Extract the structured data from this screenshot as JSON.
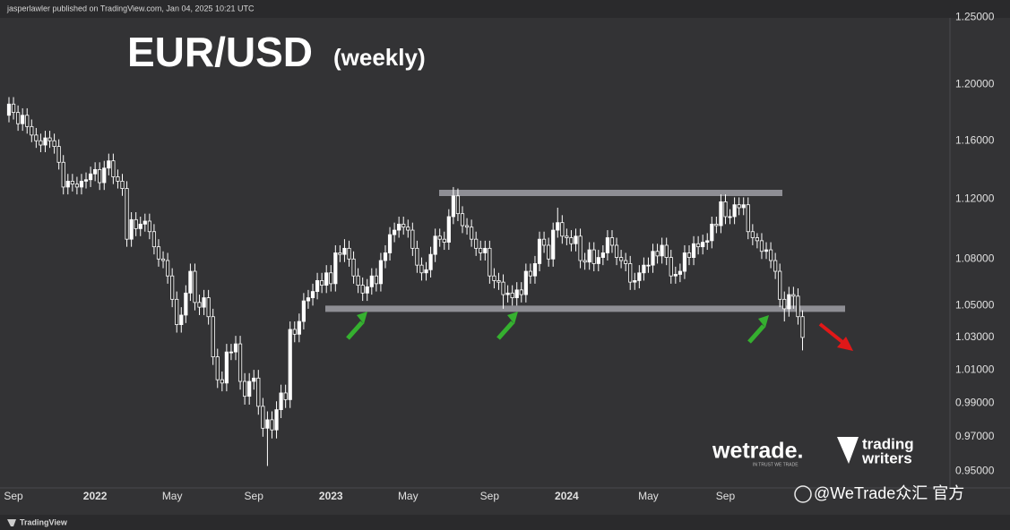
{
  "header": {
    "byline": "jasperlawler published on TradingView.com, Jan 04, 2025 10:21 UTC",
    "footer": "TradingView"
  },
  "branding": {
    "wetrade": "wetrade.",
    "wetrade_tagline": "IN TRUST WE TRADE",
    "trading": "trading",
    "writers": "writers",
    "watermark": "@WeTrade众汇 官方"
  },
  "chart_data": {
    "type": "candlestick",
    "title": "EUR/USD",
    "subtitle": "(weekly)",
    "log_scale": true,
    "grid": false,
    "up_color": "#ffffff",
    "down_color": "#2b2b2b",
    "wick_color": "#ffffff",
    "level_color": "#8e8e94",
    "ylim": [
      0.943,
      1.263
    ],
    "yticks": [
      {
        "value": 1.25,
        "label": "1.25000"
      },
      {
        "value": 1.2,
        "label": "1.20000"
      },
      {
        "value": 1.16,
        "label": "1.16000"
      },
      {
        "value": 1.12,
        "label": "1.12000"
      },
      {
        "value": 1.08,
        "label": "1.08000"
      },
      {
        "value": 1.05,
        "label": "1.05000"
      },
      {
        "value": 1.03,
        "label": "1.03000"
      },
      {
        "value": 1.01,
        "label": "1.01000"
      },
      {
        "value": 0.99,
        "label": "0.99000"
      },
      {
        "value": 0.97,
        "label": "0.97000"
      },
      {
        "value": 0.95,
        "label": "0.95000"
      }
    ],
    "levels": [
      1.124,
      1.048
    ],
    "categories": [
      null,
      "Sep",
      null,
      null,
      null,
      null,
      null,
      null,
      null,
      null,
      null,
      null,
      null,
      null,
      null,
      null,
      null,
      null,
      null,
      "2022",
      null,
      null,
      null,
      null,
      null,
      null,
      null,
      null,
      null,
      null,
      null,
      null,
      null,
      null,
      null,
      null,
      "May",
      null,
      null,
      null,
      null,
      null,
      null,
      null,
      null,
      null,
      null,
      null,
      null,
      null,
      null,
      null,
      null,
      null,
      "Sep",
      null,
      null,
      null,
      null,
      null,
      null,
      null,
      null,
      null,
      null,
      null,
      null,
      null,
      null,
      null,
      null,
      "2023",
      null,
      null,
      null,
      null,
      null,
      null,
      null,
      null,
      null,
      null,
      null,
      null,
      null,
      null,
      null,
      null,
      "May",
      null,
      null,
      null,
      null,
      null,
      null,
      null,
      null,
      null,
      null,
      null,
      null,
      null,
      null,
      null,
      null,
      null,
      "Sep",
      null,
      null,
      null,
      null,
      null,
      null,
      null,
      null,
      null,
      null,
      null,
      null,
      null,
      null,
      null,
      null,
      "2024",
      null,
      null,
      null,
      null,
      null,
      null,
      null,
      null,
      null,
      null,
      null,
      null,
      null,
      null,
      null,
      null,
      null,
      "May",
      null,
      null,
      null,
      null,
      null,
      null,
      null,
      null,
      null,
      null,
      null,
      null,
      null,
      null,
      null,
      null,
      "Sep",
      null,
      null,
      null,
      null,
      null,
      null,
      null,
      null,
      null,
      null,
      null,
      null,
      null,
      null,
      null,
      null,
      null
    ],
    "open": [
      1.178,
      1.186,
      1.18,
      1.172,
      1.178,
      1.17,
      1.164,
      1.16,
      1.157,
      1.162,
      1.16,
      1.156,
      1.145,
      1.128,
      1.132,
      1.13,
      1.128,
      1.132,
      1.133,
      1.137,
      1.14,
      1.131,
      1.141,
      1.146,
      1.135,
      1.132,
      1.127,
      1.093,
      1.106,
      1.1,
      1.103,
      1.105,
      1.098,
      1.088,
      1.08,
      1.079,
      1.069,
      1.054,
      1.038,
      1.044,
      1.058,
      1.072,
      1.052,
      1.049,
      1.055,
      1.043,
      1.018,
      1.004,
      1.002,
      1.021,
      1.021,
      1.026,
      1.003,
      0.994,
      1.003,
      1.005,
      0.988,
      0.975,
      0.98,
      0.974,
      0.986,
      0.996,
      0.992,
      1.035,
      1.032,
      1.04,
      1.053,
      1.055,
      1.059,
      1.066,
      1.063,
      1.071,
      1.064,
      1.084,
      1.083,
      1.087,
      1.08,
      1.069,
      1.063,
      1.058,
      1.062,
      1.069,
      1.064,
      1.079,
      1.084,
      1.096,
      1.099,
      1.103,
      1.101,
      1.099,
      1.087,
      1.076,
      1.071,
      1.073,
      1.083,
      1.095,
      1.093,
      1.091,
      1.108,
      1.122,
      1.11,
      1.102,
      1.101,
      1.093,
      1.087,
      1.084,
      1.087,
      1.069,
      1.066,
      1.065,
      1.057,
      1.058,
      1.055,
      1.06,
      1.057,
      1.072,
      1.069,
      1.077,
      1.093,
      1.089,
      1.08,
      1.099,
      1.104,
      1.095,
      1.094,
      1.09,
      1.095,
      1.079,
      1.078,
      1.086,
      1.077,
      1.081,
      1.084,
      1.094,
      1.089,
      1.081,
      1.079,
      1.077,
      1.065,
      1.066,
      1.071,
      1.076,
      1.076,
      1.085,
      1.082,
      1.089,
      1.081,
      1.069,
      1.07,
      1.072,
      1.084,
      1.081,
      1.09,
      1.088,
      1.091,
      1.092,
      1.103,
      1.102,
      1.118,
      1.108,
      1.108,
      1.116,
      1.114,
      1.116,
      1.098,
      1.094,
      1.092,
      1.085,
      1.086,
      1.079,
      1.072,
      1.054,
      1.048,
      1.057,
      1.056,
      1.043
    ],
    "high": [
      1.191,
      1.191,
      1.185,
      1.183,
      1.183,
      1.175,
      1.169,
      1.165,
      1.167,
      1.167,
      1.165,
      1.161,
      1.15,
      1.137,
      1.137,
      1.135,
      1.137,
      1.138,
      1.142,
      1.145,
      1.145,
      1.146,
      1.151,
      1.151,
      1.14,
      1.137,
      1.132,
      1.111,
      1.111,
      1.108,
      1.11,
      1.11,
      1.103,
      1.093,
      1.085,
      1.084,
      1.074,
      1.059,
      1.049,
      1.063,
      1.077,
      1.077,
      1.057,
      1.06,
      1.06,
      1.048,
      1.023,
      1.009,
      1.026,
      1.026,
      1.031,
      1.031,
      1.008,
      1.008,
      1.01,
      1.01,
      0.993,
      0.985,
      0.985,
      0.991,
      1.001,
      1.001,
      1.04,
      1.04,
      1.045,
      1.058,
      1.06,
      1.064,
      1.071,
      1.071,
      1.076,
      1.076,
      1.089,
      1.089,
      1.093,
      1.092,
      1.085,
      1.074,
      1.068,
      1.067,
      1.074,
      1.074,
      1.084,
      1.089,
      1.101,
      1.104,
      1.108,
      1.108,
      1.106,
      1.104,
      1.092,
      1.081,
      1.078,
      1.088,
      1.1,
      1.1,
      1.098,
      1.113,
      1.128,
      1.127,
      1.115,
      1.107,
      1.106,
      1.098,
      1.092,
      1.092,
      1.092,
      1.074,
      1.071,
      1.07,
      1.063,
      1.063,
      1.065,
      1.065,
      1.077,
      1.077,
      1.082,
      1.098,
      1.098,
      1.094,
      1.104,
      1.114,
      1.109,
      1.1,
      1.099,
      1.1,
      1.1,
      1.084,
      1.091,
      1.091,
      1.086,
      1.089,
      1.099,
      1.099,
      1.094,
      1.086,
      1.084,
      1.082,
      1.071,
      1.076,
      1.081,
      1.081,
      1.09,
      1.09,
      1.094,
      1.094,
      1.086,
      1.075,
      1.077,
      1.089,
      1.089,
      1.095,
      1.095,
      1.096,
      1.097,
      1.108,
      1.108,
      1.123,
      1.123,
      1.113,
      1.121,
      1.121,
      1.121,
      1.121,
      1.103,
      1.097,
      1.097,
      1.091,
      1.091,
      1.084,
      1.077,
      1.059,
      1.062,
      1.062,
      1.061,
      1.047
    ],
    "low": [
      1.173,
      1.175,
      1.167,
      1.167,
      1.165,
      1.159,
      1.155,
      1.152,
      1.152,
      1.155,
      1.151,
      1.14,
      1.123,
      1.123,
      1.125,
      1.123,
      1.123,
      1.127,
      1.128,
      1.132,
      1.126,
      1.126,
      1.136,
      1.13,
      1.127,
      1.122,
      1.088,
      1.088,
      1.095,
      1.095,
      1.098,
      1.093,
      1.083,
      1.075,
      1.074,
      1.064,
      1.049,
      1.033,
      1.033,
      1.039,
      1.053,
      1.047,
      1.044,
      1.044,
      1.038,
      1.013,
      0.999,
      0.997,
      0.997,
      1.016,
      1.016,
      0.998,
      0.989,
      0.989,
      0.998,
      0.983,
      0.97,
      0.953,
      0.969,
      0.969,
      0.981,
      0.987,
      0.987,
      1.027,
      1.027,
      1.035,
      1.048,
      1.05,
      1.054,
      1.058,
      1.058,
      1.059,
      1.059,
      1.078,
      1.078,
      1.075,
      1.064,
      1.058,
      1.053,
      1.053,
      1.057,
      1.059,
      1.059,
      1.074,
      1.079,
      1.091,
      1.094,
      1.096,
      1.094,
      1.082,
      1.071,
      1.066,
      1.066,
      1.068,
      1.078,
      1.088,
      1.086,
      1.086,
      1.103,
      1.105,
      1.097,
      1.096,
      1.088,
      1.082,
      1.079,
      1.079,
      1.064,
      1.061,
      1.06,
      1.048,
      1.052,
      1.05,
      1.05,
      1.052,
      1.052,
      1.064,
      1.064,
      1.072,
      1.084,
      1.075,
      1.075,
      1.094,
      1.09,
      1.089,
      1.085,
      1.085,
      1.074,
      1.073,
      1.073,
      1.072,
      1.072,
      1.076,
      1.079,
      1.084,
      1.076,
      1.074,
      1.072,
      1.06,
      1.06,
      1.061,
      1.066,
      1.071,
      1.071,
      1.077,
      1.077,
      1.076,
      1.064,
      1.064,
      1.065,
      1.067,
      1.076,
      1.076,
      1.083,
      1.083,
      1.086,
      1.087,
      1.097,
      1.097,
      1.103,
      1.103,
      1.103,
      1.109,
      1.109,
      1.093,
      1.089,
      1.087,
      1.08,
      1.08,
      1.074,
      1.067,
      1.049,
      1.04,
      1.043,
      1.048,
      1.038,
      1.022
    ],
    "close": [
      1.186,
      1.18,
      1.172,
      1.178,
      1.17,
      1.164,
      1.16,
      1.157,
      1.162,
      1.16,
      1.156,
      1.145,
      1.128,
      1.132,
      1.13,
      1.128,
      1.132,
      1.133,
      1.137,
      1.14,
      1.131,
      1.141,
      1.146,
      1.135,
      1.132,
      1.127,
      1.093,
      1.106,
      1.1,
      1.103,
      1.105,
      1.098,
      1.088,
      1.08,
      1.079,
      1.069,
      1.054,
      1.038,
      1.044,
      1.058,
      1.072,
      1.052,
      1.049,
      1.055,
      1.043,
      1.018,
      1.004,
      1.002,
      1.021,
      1.021,
      1.026,
      1.003,
      0.994,
      1.003,
      1.005,
      0.988,
      0.975,
      0.98,
      0.974,
      0.986,
      0.996,
      0.992,
      1.035,
      1.032,
      1.04,
      1.053,
      1.055,
      1.059,
      1.066,
      1.063,
      1.071,
      1.064,
      1.084,
      1.083,
      1.087,
      1.08,
      1.069,
      1.063,
      1.058,
      1.062,
      1.069,
      1.064,
      1.079,
      1.084,
      1.096,
      1.099,
      1.103,
      1.101,
      1.099,
      1.087,
      1.076,
      1.071,
      1.073,
      1.083,
      1.095,
      1.093,
      1.091,
      1.108,
      1.122,
      1.11,
      1.102,
      1.101,
      1.093,
      1.087,
      1.084,
      1.087,
      1.069,
      1.066,
      1.065,
      1.057,
      1.058,
      1.055,
      1.06,
      1.057,
      1.072,
      1.069,
      1.077,
      1.093,
      1.089,
      1.08,
      1.099,
      1.104,
      1.095,
      1.094,
      1.09,
      1.095,
      1.079,
      1.078,
      1.086,
      1.077,
      1.081,
      1.084,
      1.094,
      1.089,
      1.081,
      1.079,
      1.077,
      1.065,
      1.066,
      1.071,
      1.076,
      1.076,
      1.085,
      1.082,
      1.089,
      1.081,
      1.069,
      1.07,
      1.072,
      1.084,
      1.081,
      1.09,
      1.088,
      1.091,
      1.092,
      1.103,
      1.102,
      1.118,
      1.108,
      1.108,
      1.116,
      1.114,
      1.116,
      1.098,
      1.094,
      1.092,
      1.085,
      1.086,
      1.079,
      1.072,
      1.054,
      1.048,
      1.057,
      1.056,
      1.043,
      1.03
    ]
  }
}
